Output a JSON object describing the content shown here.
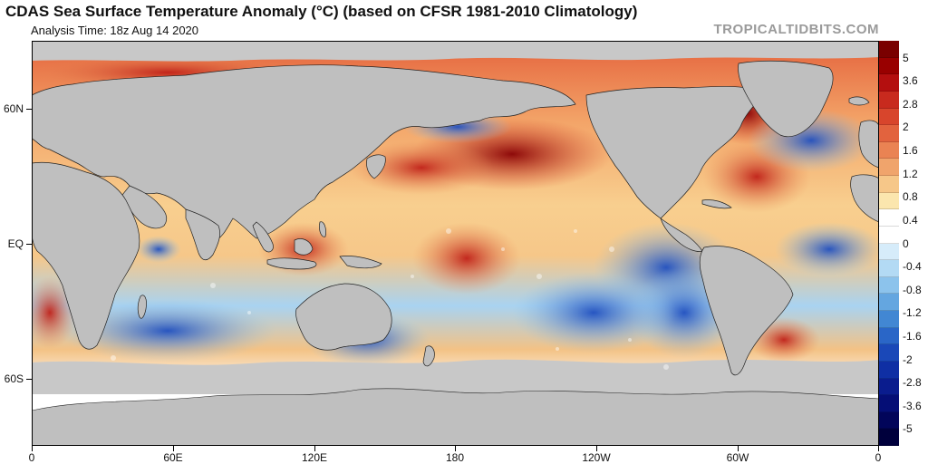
{
  "header": {
    "title": "CDAS Sea Surface Temperature Anomaly (°C) (based on CFSR 1981-2010 Climatology)",
    "subtitle": "Analysis Time: 18z Aug 14 2020",
    "brand": "TROPICALTIDBITS.COM"
  },
  "map": {
    "lat_labels": [
      "60N",
      "EQ",
      "60S"
    ],
    "lon_labels": [
      "0",
      "60E",
      "120E",
      "180",
      "120W",
      "60W",
      "0"
    ],
    "land_color": "#bfbfbf",
    "ice_color": "#c8c8c8"
  },
  "colorbar": {
    "labels": [
      "5",
      "3.6",
      "2.8",
      "2",
      "1.6",
      "1.2",
      "0.8",
      "0.4",
      "0",
      "-0.4",
      "-0.8",
      "-1.2",
      "-1.6",
      "-2",
      "-2.8",
      "-3.6",
      "-5"
    ],
    "colors": [
      "#7a0000",
      "#990000",
      "#b40f0f",
      "#c82a1e",
      "#d8452c",
      "#e2633e",
      "#ea8353",
      "#f0a46c",
      "#f6c789",
      "#fbe6ae",
      "#ffffff",
      "#ffffff",
      "#d6ecfa",
      "#b3daf4",
      "#8cc3ec",
      "#64a6e0",
      "#4287d3",
      "#2a66c7",
      "#1a48b8",
      "#0f2fa4",
      "#0a1c8e",
      "#050e76",
      "#02055a",
      "#00003c"
    ]
  }
}
